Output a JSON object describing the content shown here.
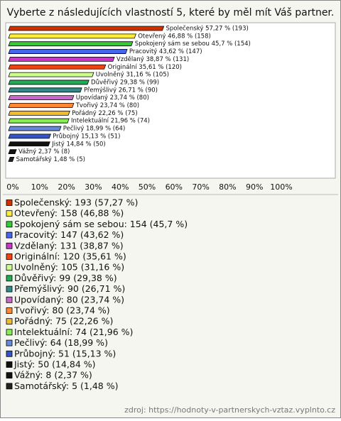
{
  "chart_data": {
    "type": "bar",
    "orientation": "horizontal",
    "title": "Vyberte z následujících vlastností 5, které by měl mít Váš partner.",
    "categories": [
      "Společenský",
      "Otevřený",
      "Spokojený sám se sebou",
      "Pracovitý",
      "Vzdělaný",
      "Originální",
      "Uvolněný",
      "Důvěřivý",
      "Přemýšlivý",
      "Upovídaný",
      "Tvořivý",
      "Pořádný",
      "Intelektuální",
      "Pečlivý",
      "Průbojný",
      "Jistý",
      "Vážný",
      "Samotářský"
    ],
    "values": [
      57.27,
      46.88,
      45.7,
      43.62,
      38.87,
      35.61,
      31.16,
      29.38,
      26.71,
      23.74,
      23.74,
      22.26,
      21.96,
      18.99,
      15.13,
      14.84,
      2.37,
      1.48
    ],
    "value_labels": [
      "Společenský 57,27 % (193)",
      "Otevřený 46,88 % (158)",
      "Spokojený sám se sebou 45,7 % (154)",
      "Pracovitý 43,62 % (147)",
      "Vzdělaný 38,87 % (131)",
      "Originální 35,61 % (120)",
      "Uvolněný 31,16 % (105)",
      "Důvěřivý 29,38 % (99)",
      "Přemýšlivý 26,71 % (90)",
      "Upovídaný 23,74 % (80)",
      "Tvořivý 23,74 % (80)",
      "Pořádný 22,26 % (75)",
      "Intelektuální 21,96 % (74)",
      "Pečlivý 18,99 % (64)",
      "Průbojný 15,13 % (51)",
      "Jistý 14,84 % (50)",
      "Vážný 2,37 % (8)",
      "Samotářský 1,48 % (5)"
    ],
    "legend_labels": [
      "Společenský: 193 (57,27 %)",
      "Otevřený: 158 (46,88 %)",
      "Spokojený sám se sebou: 154 (45,7 %)",
      "Pracovitý: 147 (43,62 %)",
      "Vzdělaný: 131 (38,87 %)",
      "Originální: 120 (35,61 %)",
      "Uvolněný: 105 (31,16 %)",
      "Důvěřivý: 99 (29,38 %)",
      "Přemýšlivý: 90 (26,71 %)",
      "Upovídaný: 80 (23,74 %)",
      "Tvořivý: 80 (23,74 %)",
      "Pořádný: 75 (22,26 %)",
      "Intelektuální: 74 (21,96 %)",
      "Pečlivý: 64 (18,99 %)",
      "Průbojný: 51 (15,13 %)",
      "Jistý: 50 (14,84 %)",
      "Vážný: 8 (2,37 %)",
      "Samotářský: 5 (1,48 %)"
    ],
    "colors": [
      "#cc3300",
      "#ffee33",
      "#33cc33",
      "#4466ee",
      "#cc33cc",
      "#ee4411",
      "#ccff88",
      "#22aa55",
      "#338888",
      "#cc66cc",
      "#ff8833",
      "#eebb33",
      "#88ee55",
      "#6688dd",
      "#3355cc",
      "#111111",
      "#111111",
      "#222222"
    ],
    "xlim": [
      0,
      100
    ],
    "xticks": [
      {
        "value": 0,
        "label": "0%"
      },
      {
        "value": 10,
        "label": "10%"
      },
      {
        "value": 20,
        "label": "20%"
      },
      {
        "value": 30,
        "label": "30%"
      },
      {
        "value": 40,
        "label": "40%"
      },
      {
        "value": 50,
        "label": "50%"
      },
      {
        "value": 60,
        "label": "60%"
      },
      {
        "value": 70,
        "label": "70%"
      },
      {
        "value": 80,
        "label": "80%"
      },
      {
        "value": 90,
        "label": "90%"
      },
      {
        "value": 100,
        "label": "100%"
      }
    ],
    "grid": false,
    "source": "zdroj: https://hodnoty-v-partnerskych-vztaz.vyplnto.cz"
  }
}
